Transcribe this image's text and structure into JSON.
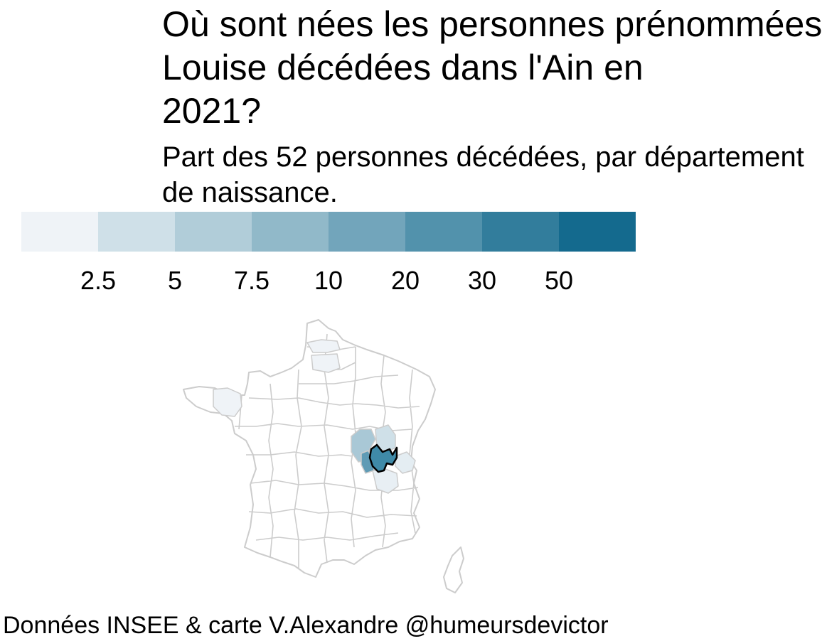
{
  "title": "Où sont nées les personnes prénommées\nLouise décédées dans l'Ain en\n2021?",
  "subtitle": "Part des 52 personnes décédées, par département\nde naissance.",
  "legend": {
    "colors": [
      "#eff3f7",
      "#cfe0e8",
      "#b1cdd9",
      "#91b9c9",
      "#72a5bb",
      "#5292ac",
      "#327d9c",
      "#146a8e"
    ],
    "tick_labels": [
      "2.5",
      "5",
      "7.5",
      "10",
      "20",
      "30",
      "50"
    ]
  },
  "map": {
    "border_color": "#cccccc",
    "highlight_border_color": "#000000",
    "departments_shaded": [
      {
        "department": "Ain",
        "color": "#3f8aa8",
        "outlined": true
      },
      {
        "department": "Rhône",
        "color": "#5f9bb5"
      },
      {
        "department": "Saône-et-Loire",
        "color": "#a9c8d6"
      },
      {
        "department": "Jura",
        "color": "#cfe0e8"
      },
      {
        "department": "Haute-Savoie",
        "color": "#e4edf2"
      },
      {
        "department": "Isère",
        "color": "#e8eff4"
      },
      {
        "department": "Somme",
        "color": "#eff3f7"
      },
      {
        "department": "Oise",
        "color": "#eff3f7"
      },
      {
        "department": "Côtes-d'Armor",
        "color": "#eff3f7"
      }
    ]
  },
  "caption": "Données INSEE & carte V.Alexandre @humeursdevictor"
}
